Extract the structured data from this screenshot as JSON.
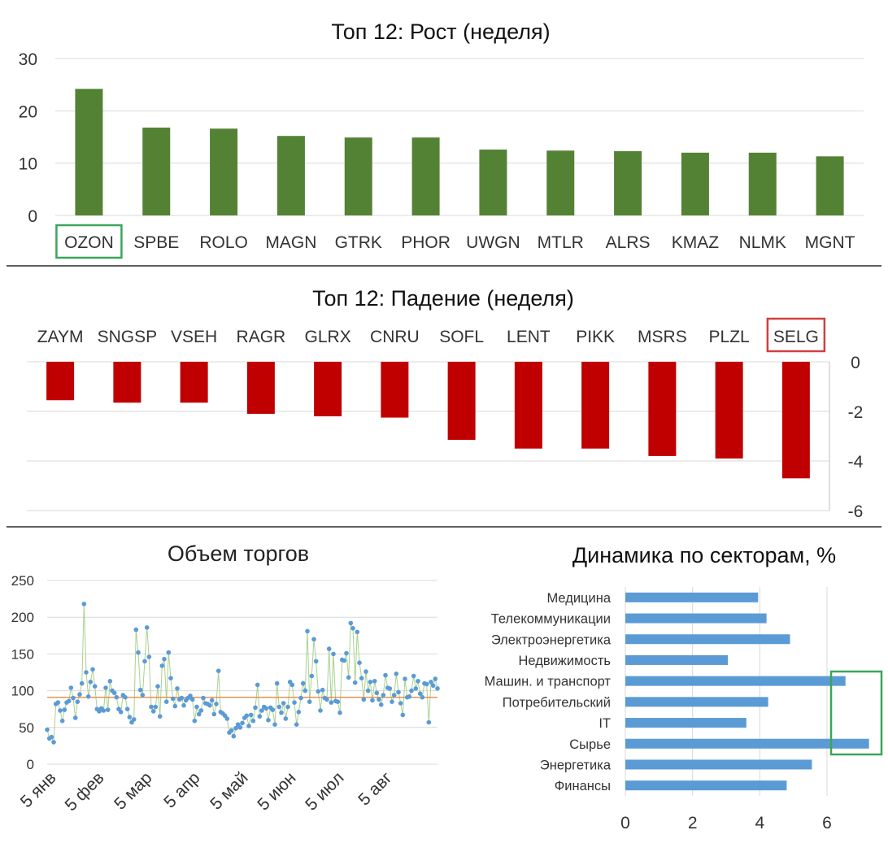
{
  "chart_data": [
    {
      "type": "bar",
      "title": "Топ 12: Рост (неделя)",
      "categories": [
        "OZON",
        "SPBE",
        "ROLO",
        "MAGN",
        "GTRK",
        "PHOR",
        "UWGN",
        "MTLR",
        "ALRS",
        "KMAZ",
        "NLMK",
        "MGNT"
      ],
      "values": [
        24.2,
        16.8,
        16.6,
        15.2,
        14.9,
        14.9,
        12.6,
        12.4,
        12.3,
        12.0,
        12.0,
        11.3
      ],
      "ylim": [
        0,
        30
      ],
      "yticks": [
        "0",
        "10",
        "20",
        "30"
      ],
      "grid": true,
      "color": "#548235",
      "highlight": {
        "category": "OZON",
        "color": "#3aa55a"
      }
    },
    {
      "type": "bar",
      "title": "Топ 12: Падение (неделя)",
      "categories": [
        "ZAYM",
        "SNGSP",
        "VSEH",
        "RAGR",
        "GLRX",
        "CNRU",
        "SOFL",
        "LENT",
        "PIKK",
        "MSRS",
        "PLZL",
        "SELG"
      ],
      "values": [
        -1.55,
        -1.65,
        -1.65,
        -2.1,
        -2.2,
        -2.25,
        -3.15,
        -3.5,
        -3.5,
        -3.8,
        -3.9,
        -4.7
      ],
      "ylim": [
        -6,
        0
      ],
      "yticks": [
        "0",
        "-2",
        "-4",
        "-6"
      ],
      "grid": true,
      "color": "#c00000",
      "highlight": {
        "category": "SELG",
        "color": "#d04040"
      }
    },
    {
      "type": "line",
      "title": "Объем торгов",
      "x_labels": [
        "5 янв",
        "5 фев",
        "5 мар",
        "5 апр",
        "5 май",
        "5 июн",
        "5 июл",
        "5 авг"
      ],
      "values": [
        47,
        35,
        37,
        30,
        82,
        84,
        73,
        59,
        74,
        84,
        86,
        104,
        90,
        63,
        85,
        95,
        110,
        218,
        125,
        92,
        112,
        129,
        106,
        75,
        72,
        76,
        73,
        104,
        74,
        113,
        100,
        97,
        91,
        75,
        71,
        94,
        91,
        75,
        64,
        57,
        61,
        183,
        152,
        101,
        94,
        140,
        186,
        146,
        78,
        72,
        78,
        106,
        65,
        134,
        143,
        85,
        152,
        117,
        89,
        79,
        103,
        88,
        90,
        80,
        87,
        90,
        93,
        88,
        59,
        78,
        68,
        73,
        90,
        83,
        82,
        80,
        87,
        68,
        82,
        127,
        71,
        69,
        66,
        62,
        43,
        46,
        38,
        49,
        54,
        50,
        56,
        63,
        66,
        52,
        67,
        59,
        77,
        108,
        65,
        73,
        78,
        76,
        60,
        77,
        74,
        54,
        110,
        78,
        70,
        83,
        62,
        78,
        112,
        108,
        84,
        54,
        71,
        90,
        110,
        100,
        181,
        85,
        120,
        170,
        140,
        99,
        73,
        101,
        90,
        88,
        157,
        84,
        150,
        86,
        85,
        70,
        142,
        141,
        151,
        118,
        192,
        185,
        111,
        180,
        138,
        117,
        88,
        126,
        100,
        112,
        87,
        113,
        97,
        88,
        81,
        94,
        121,
        104,
        103,
        85,
        94,
        123,
        98,
        83,
        67,
        116,
        91,
        92,
        100,
        120,
        103,
        113,
        96,
        91,
        110,
        109,
        57,
        112,
        107,
        116,
        103
      ],
      "average": 91,
      "ylim": [
        0,
        250
      ],
      "yticks": [
        "0",
        "50",
        "100",
        "150",
        "200",
        "250"
      ],
      "grid": true,
      "point_color": "#5b9bd5",
      "line_color": "#a9d18e",
      "average_color": "#ed7d31"
    },
    {
      "type": "bar",
      "orientation": "horizontal",
      "title": "Динамика по секторам, %",
      "categories": [
        "Медицина",
        "Телекоммуникации",
        "Электроэнергетика",
        "Недвижимость",
        "Машин. и транспорт",
        "Потребительский",
        "IT",
        "Сырье",
        "Энергетика",
        "Финансы"
      ],
      "values": [
        3.95,
        4.2,
        4.9,
        3.05,
        6.55,
        4.25,
        3.6,
        7.25,
        5.55,
        4.8
      ],
      "xlim": [
        0,
        7.5
      ],
      "xticks": [
        "0",
        "2",
        "4",
        "6"
      ],
      "grid": true,
      "color": "#5b9bd5",
      "highlight_box_color": "#3aa55a"
    }
  ]
}
